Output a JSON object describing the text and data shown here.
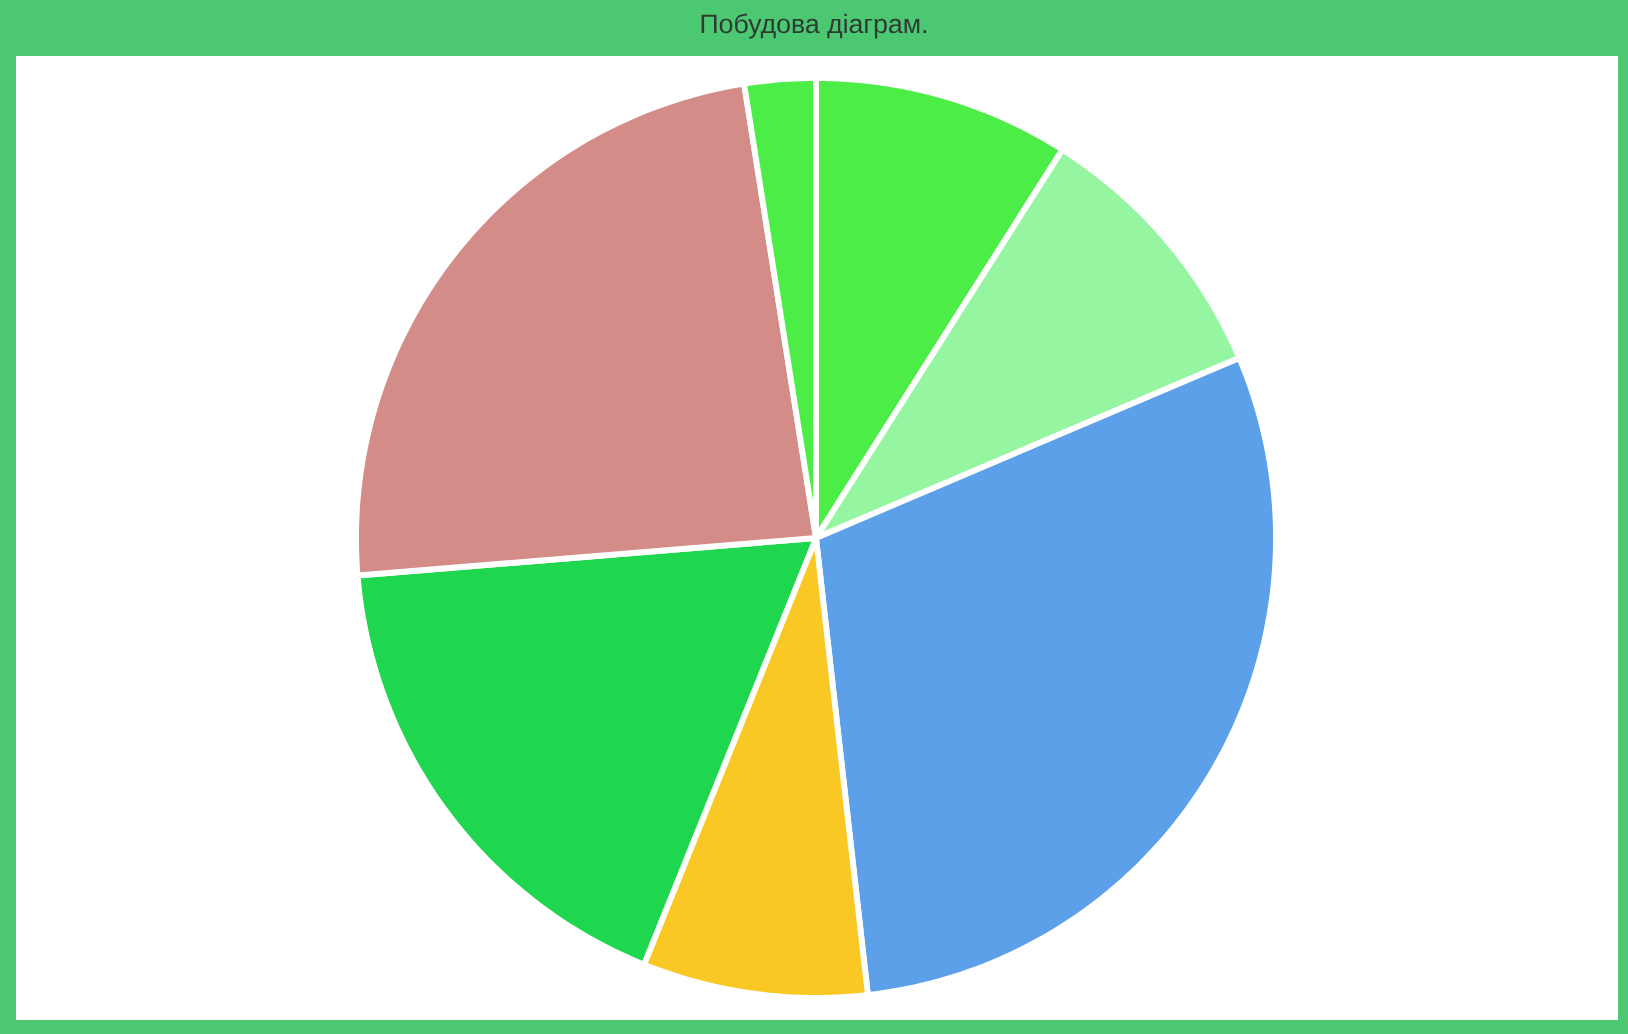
{
  "chart_data": {
    "type": "pie",
    "title": "Побудова діаграм.",
    "categories": [
      null,
      null,
      null,
      null,
      null,
      null,
      null
    ],
    "values": [
      9.0,
      9.6,
      29.6,
      7.9,
      17.6,
      23.8,
      2.5
    ],
    "colors": [
      "#4ded47",
      "#95f5a0",
      "#5ba0e8",
      "#f9c825",
      "#1fd74f",
      "#d38c87",
      "#4ded47"
    ]
  }
}
